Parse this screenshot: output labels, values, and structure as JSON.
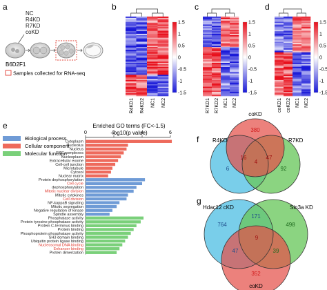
{
  "panels": {
    "a": {
      "letter": "a",
      "conditions": [
        "NC",
        "R4KD",
        "R7KD",
        "coKD"
      ],
      "strain": "B6D2F1",
      "legend": "Samples collected for RNA-seq"
    },
    "b": {
      "letter": "b",
      "samples": [
        "R4KD1",
        "R4KD2",
        "NC1",
        "NC2"
      ]
    },
    "c": {
      "letter": "c",
      "samples": [
        "R7KD1",
        "R7KD2",
        "NC1",
        "NC2"
      ]
    },
    "d": {
      "letter": "d",
      "samples": [
        "coKD1",
        "coKD2",
        "NC1",
        "NC2"
      ]
    },
    "colorscale": {
      "ticks": [
        "1.5",
        "1",
        "0.5",
        "0",
        "-0.5",
        "-1",
        "-1.5"
      ],
      "high_color": "#e8101c",
      "mid_color": "#ffffff",
      "low_color": "#1a1ad8"
    },
    "e": {
      "letter": "e"
    },
    "f": {
      "letter": "f",
      "sets": [
        "R4KD",
        "coKD",
        "R7KD"
      ],
      "regions": {
        "r4_only": "6",
        "co_only": "380",
        "r7_only": "92",
        "r4_co": "16",
        "co_r7": "47",
        "all": "4"
      }
    },
    "g": {
      "letter": "g",
      "sets": [
        "Hdac12 cKD",
        "Sin3a KD",
        "coKD"
      ],
      "regions": {
        "h_only": "764",
        "s_only": "498",
        "c_only": "352",
        "h_s": "171",
        "h_c": "47",
        "s_c": "39",
        "all": "9"
      }
    }
  },
  "chart_data": {
    "type": "bar",
    "orientation": "horizontal",
    "title": "Enriched GO terms (FC<-1.5)",
    "xlabel": "-log10(p value)",
    "xlim": [
      0,
      6
    ],
    "xticks": [
      "0",
      "2",
      "4",
      "6"
    ],
    "legend_placement": "top-left",
    "series": [
      {
        "name": "Biological process",
        "color": "#6f9bd6"
      },
      {
        "name": "Cellular component",
        "color": "#ee6a5c"
      },
      {
        "name": "Molecular function",
        "color": "#7ad07a"
      }
    ],
    "categories": [
      {
        "label": "Cytoplasm",
        "value": 6.1,
        "group": "Cellular component",
        "highlight": false
      },
      {
        "label": "Nucleolus",
        "value": 3.0,
        "group": "Cellular component",
        "highlight": false
      },
      {
        "label": "Nucleus",
        "value": 2.9,
        "group": "Cellular component",
        "highlight": false
      },
      {
        "label": "ESC complexes",
        "value": 2.7,
        "group": "Cellular component",
        "highlight": false
      },
      {
        "label": "Nucleoplasm",
        "value": 2.5,
        "group": "Cellular component",
        "highlight": false
      },
      {
        "label": "Extracellular exome",
        "value": 2.3,
        "group": "Cellular component",
        "highlight": false
      },
      {
        "label": "Cell-cell junction",
        "value": 2.1,
        "group": "Cellular component",
        "highlight": false
      },
      {
        "label": "Microtubule",
        "value": 1.9,
        "group": "Cellular component",
        "highlight": false
      },
      {
        "label": "Cytosol",
        "value": 1.8,
        "group": "Cellular component",
        "highlight": false
      },
      {
        "label": "Nuclear matrix",
        "value": 1.6,
        "group": "Cellular component",
        "highlight": false
      },
      {
        "label": "Protein dephosphorylation",
        "value": 4.2,
        "group": "Biological process",
        "highlight": false
      },
      {
        "label": "Cell cycle",
        "value": 4.0,
        "group": "Biological process",
        "highlight": true
      },
      {
        "label": "dephosphorylation",
        "value": 3.6,
        "group": "Biological process",
        "highlight": false
      },
      {
        "label": "Mitotic nuclear division",
        "value": 3.4,
        "group": "Biological process",
        "highlight": true
      },
      {
        "label": "Mitotic cytokines",
        "value": 3.0,
        "group": "Biological process",
        "highlight": false
      },
      {
        "label": "Cell division",
        "value": 2.9,
        "group": "Biological process",
        "highlight": true
      },
      {
        "label": "NF-kappaB signaling",
        "value": 2.4,
        "group": "Biological process",
        "highlight": false
      },
      {
        "label": "Mitotic segregation",
        "value": 2.2,
        "group": "Biological process",
        "highlight": false
      },
      {
        "label": "Negative regulation of kinase",
        "value": 1.9,
        "group": "Biological process",
        "highlight": false
      },
      {
        "label": "Spindle assembly",
        "value": 1.7,
        "group": "Biological process",
        "highlight": false
      },
      {
        "label": "Phosphatase activity",
        "value": 4.1,
        "group": "Molecular function",
        "highlight": false
      },
      {
        "label": "Protein tyrosine phosphatase activity",
        "value": 3.9,
        "group": "Molecular function",
        "highlight": false
      },
      {
        "label": "Protein C-terminus binding",
        "value": 3.6,
        "group": "Molecular function",
        "highlight": false
      },
      {
        "label": "Protein binding",
        "value": 3.4,
        "group": "Molecular function",
        "highlight": false
      },
      {
        "label": "Phosphoprotein phosphatase activity",
        "value": 3.2,
        "group": "Molecular function",
        "highlight": false
      },
      {
        "label": "SH3 domain binding",
        "value": 3.0,
        "group": "Molecular function",
        "highlight": false
      },
      {
        "label": "Ubiquitin protein ligase binding",
        "value": 2.8,
        "group": "Molecular function",
        "highlight": false
      },
      {
        "label": "Nucleosomal DNA binding",
        "value": 2.6,
        "group": "Molecular function",
        "highlight": true
      },
      {
        "label": "Enhancer binding",
        "value": 2.4,
        "group": "Molecular function",
        "highlight": true
      },
      {
        "label": "Protein dimerization",
        "value": 2.2,
        "group": "Molecular function",
        "highlight": false
      }
    ]
  }
}
